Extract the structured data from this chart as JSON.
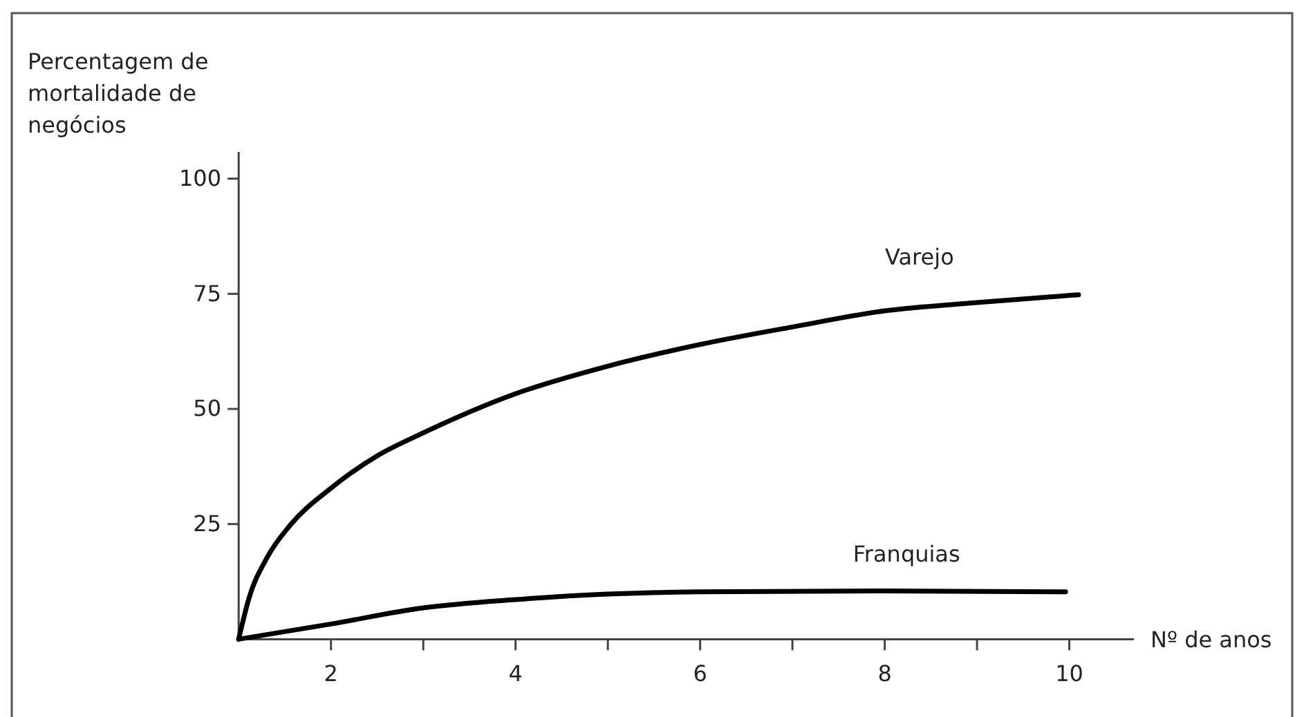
{
  "chart_data": {
    "type": "line",
    "ylabel": "Percentagem de\nmortalidade de\nnegócios",
    "xlabel": "Nº de anos",
    "xlim": [
      1,
      10.7
    ],
    "ylim": [
      0,
      105.8
    ],
    "xticks": [
      2,
      {
        "value": 3,
        "label": null
      },
      4,
      {
        "value": 5,
        "label": null
      },
      6,
      {
        "value": 7,
        "label": null
      },
      8,
      {
        "value": 9,
        "label": null
      },
      10
    ],
    "yticks": [
      25,
      50,
      75,
      100
    ],
    "grid": false,
    "legend": false,
    "marker": "none",
    "line_style": "solid",
    "series": [
      {
        "name": "Varejo",
        "color": "#000000",
        "x": [
          1,
          1.11,
          1.31,
          1.56,
          2,
          2.5,
          3,
          4,
          5,
          6,
          7,
          8,
          9,
          10.1
        ],
        "values": [
          0,
          8.8,
          17.8,
          24.8,
          32.8,
          39.8,
          44.8,
          53.3,
          59.3,
          64,
          67.8,
          71.3,
          73.1,
          74.8
        ]
      },
      {
        "name": "Franquias",
        "color": "#000000",
        "x": [
          1,
          2,
          3,
          4,
          5,
          6,
          8,
          9.96
        ],
        "values": [
          0,
          3.3,
          6.8,
          8.6,
          9.8,
          10.3,
          10.5,
          10.3
        ]
      }
    ]
  }
}
